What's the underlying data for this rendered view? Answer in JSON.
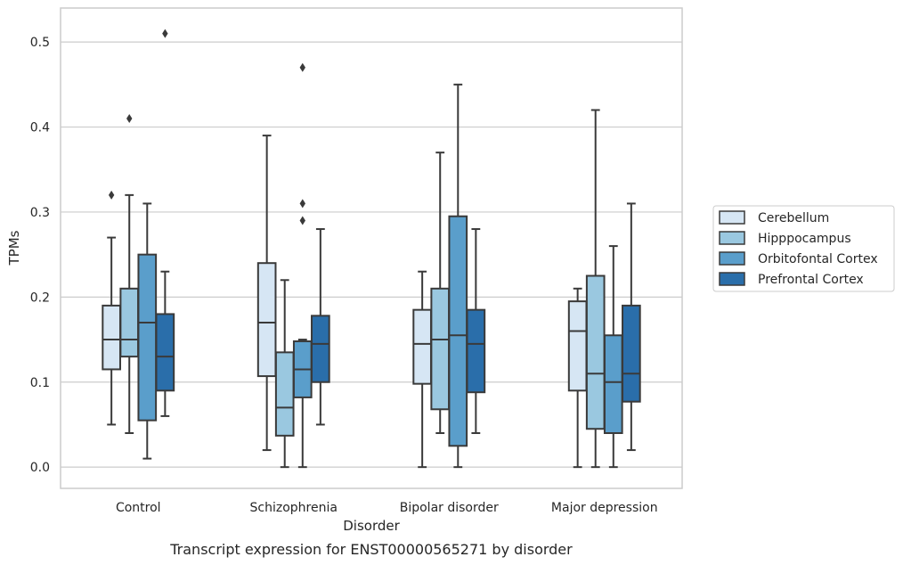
{
  "chart_data": {
    "type": "box",
    "xlabel": "Disorder",
    "ylabel": "TPMs",
    "caption": "Transcript expression for ENST00000565271 by disorder",
    "ylim": [
      -0.025,
      0.54
    ],
    "yticks": [
      "0.0",
      "0.1",
      "0.2",
      "0.3",
      "0.4",
      "0.5"
    ],
    "grid": "horizontal",
    "legend_position": "right",
    "categories": [
      "Control",
      "Schizophrenia",
      "Bipolar disorder",
      "Major depression"
    ],
    "series": [
      {
        "name": "Cerebellum",
        "color": "#d6e6f4",
        "boxes": [
          {
            "whislo": 0.05,
            "q1": 0.115,
            "med": 0.15,
            "q3": 0.19,
            "whishi": 0.27,
            "fliers": [
              0.32
            ]
          },
          {
            "whislo": 0.02,
            "q1": 0.107,
            "med": 0.17,
            "q3": 0.24,
            "whishi": 0.39,
            "fliers": []
          },
          {
            "whislo": 0.0,
            "q1": 0.098,
            "med": 0.145,
            "q3": 0.185,
            "whishi": 0.23,
            "fliers": []
          },
          {
            "whislo": 0.0,
            "q1": 0.09,
            "med": 0.16,
            "q3": 0.195,
            "whishi": 0.21,
            "fliers": []
          }
        ]
      },
      {
        "name": "Hipppocampus",
        "color": "#9ac8e0",
        "boxes": [
          {
            "whislo": 0.04,
            "q1": 0.13,
            "med": 0.15,
            "q3": 0.21,
            "whishi": 0.32,
            "fliers": [
              0.41
            ]
          },
          {
            "whislo": 0.0,
            "q1": 0.037,
            "med": 0.07,
            "q3": 0.135,
            "whishi": 0.22,
            "fliers": []
          },
          {
            "whislo": 0.04,
            "q1": 0.068,
            "med": 0.15,
            "q3": 0.21,
            "whishi": 0.37,
            "fliers": []
          },
          {
            "whislo": 0.0,
            "q1": 0.045,
            "med": 0.11,
            "q3": 0.225,
            "whishi": 0.42,
            "fliers": []
          }
        ]
      },
      {
        "name": "Orbitofontal Cortex",
        "color": "#5a9ecb",
        "boxes": [
          {
            "whislo": 0.01,
            "q1": 0.055,
            "med": 0.17,
            "q3": 0.25,
            "whishi": 0.31,
            "fliers": []
          },
          {
            "whislo": 0.0,
            "q1": 0.082,
            "med": 0.115,
            "q3": 0.148,
            "whishi": 0.15,
            "fliers": [
              0.29,
              0.31,
              0.47
            ]
          },
          {
            "whislo": 0.0,
            "q1": 0.025,
            "med": 0.155,
            "q3": 0.295,
            "whishi": 0.45,
            "fliers": []
          },
          {
            "whislo": 0.0,
            "q1": 0.04,
            "med": 0.1,
            "q3": 0.155,
            "whishi": 0.26,
            "fliers": []
          }
        ]
      },
      {
        "name": "Prefrontal Cortex",
        "color": "#2a6eaa",
        "boxes": [
          {
            "whislo": 0.06,
            "q1": 0.09,
            "med": 0.13,
            "q3": 0.18,
            "whishi": 0.23,
            "fliers": [
              0.51
            ]
          },
          {
            "whislo": 0.05,
            "q1": 0.1,
            "med": 0.145,
            "q3": 0.178,
            "whishi": 0.28,
            "fliers": []
          },
          {
            "whislo": 0.04,
            "q1": 0.088,
            "med": 0.145,
            "q3": 0.185,
            "whishi": 0.28,
            "fliers": []
          },
          {
            "whislo": 0.02,
            "q1": 0.077,
            "med": 0.11,
            "q3": 0.19,
            "whishi": 0.31,
            "fliers": []
          }
        ]
      }
    ]
  }
}
